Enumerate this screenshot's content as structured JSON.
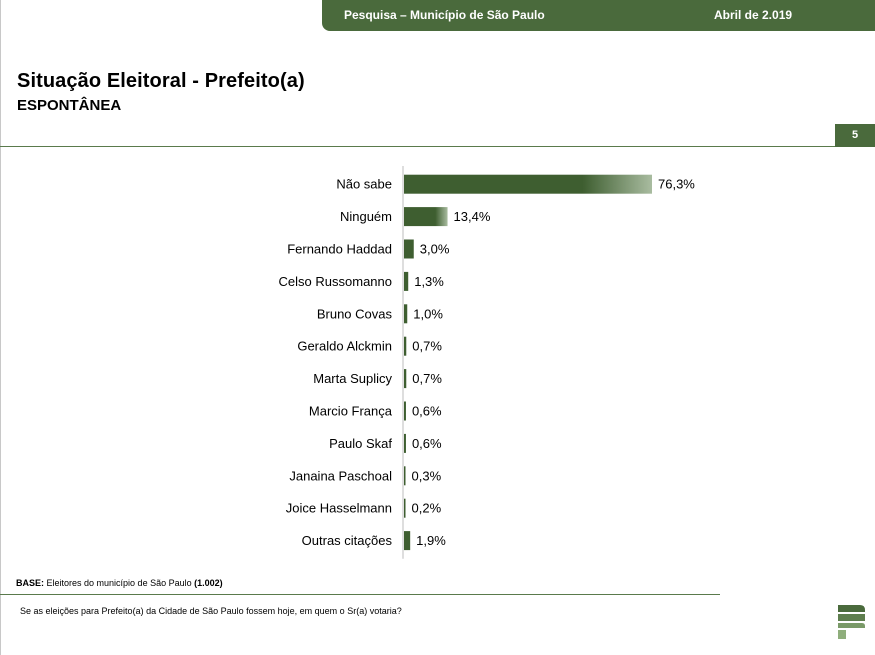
{
  "header": {
    "survey_label": "Pesquisa – Município de São Paulo",
    "date_label": "Abril de 2.019"
  },
  "title": "Situação Eleitoral - Prefeito(a)",
  "subtitle": "ESPONTÂNEA",
  "page_number": "5",
  "footer": {
    "base_label": "BASE:",
    "base_text": " Eleitores do município de São Paulo ",
    "base_count": "(1.002)",
    "question": "Se as eleições para Prefeito(a) da Cidade de São Paulo fossem hoje, em quem o Sr(a) votaria?"
  },
  "colors": {
    "brand": "#4a6a3c",
    "bar_dark": "#3e5e30",
    "bar_light": "#a9bca0"
  },
  "chart_data": {
    "type": "bar",
    "orientation": "horizontal",
    "categories": [
      "Não sabe",
      "Ninguém",
      "Fernando Haddad",
      "Celso Russomanno",
      "Bruno Covas",
      "Geraldo Alckmin",
      "Marta Suplicy",
      "Marcio França",
      "Paulo Skaf",
      "Janaina Paschoal",
      "Joice Hasselmann",
      "Outras citações"
    ],
    "values": [
      76.3,
      13.4,
      3.0,
      1.3,
      1.0,
      0.7,
      0.7,
      0.6,
      0.6,
      0.3,
      0.2,
      1.9
    ],
    "value_labels": [
      "76,3%",
      "13,4%",
      "3,0%",
      "1,3%",
      "1,0%",
      "0,7%",
      "0,7%",
      "0,6%",
      "0,6%",
      "0,3%",
      "0,2%",
      "1,9%"
    ],
    "xlim": [
      0,
      76.3
    ],
    "grid": false,
    "legend": "none"
  }
}
